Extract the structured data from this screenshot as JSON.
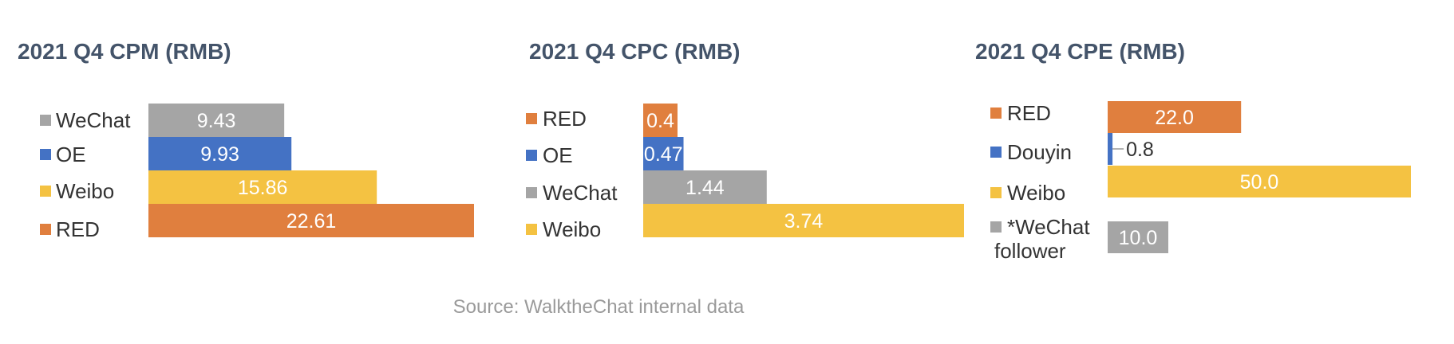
{
  "colors": {
    "grey": "#A5A5A5",
    "blue": "#4472C4",
    "yellow": "#F4C242",
    "orange": "#E07F3E",
    "title": "#44546A",
    "label": "#333333"
  },
  "source": "Source: WalktheChat internal data",
  "chart_data": [
    {
      "type": "bar",
      "orientation": "horizontal",
      "title": "2021 Q4 CPM (RMB)",
      "categories": [
        "WeChat",
        "OE",
        "Weibo",
        "RED"
      ],
      "values": [
        9.43,
        9.93,
        15.86,
        22.61
      ],
      "labels": [
        "9.43",
        "9.93",
        "15.86",
        "22.61"
      ],
      "colors": [
        "#A5A5A5",
        "#4472C4",
        "#F4C242",
        "#E07F3E"
      ],
      "xlim": [
        0,
        22.61
      ],
      "grid": false,
      "legend": "left"
    },
    {
      "type": "bar",
      "orientation": "horizontal",
      "title": "2021 Q4 CPC (RMB)",
      "categories": [
        "RED",
        "OE",
        "WeChat",
        "Weibo"
      ],
      "values": [
        0.4,
        0.47,
        1.44,
        3.74
      ],
      "labels": [
        "0.4",
        "0.47",
        "1.44",
        "3.74"
      ],
      "colors": [
        "#E07F3E",
        "#4472C4",
        "#A5A5A5",
        "#F4C242"
      ],
      "xlim": [
        0,
        3.74
      ],
      "grid": false,
      "legend": "left"
    },
    {
      "type": "bar",
      "orientation": "horizontal",
      "title": "2021 Q4 CPE (RMB)",
      "categories": [
        "RED",
        "Douyin",
        "Weibo",
        "*WeChat follower"
      ],
      "values": [
        22.0,
        0.8,
        50.0,
        10.0
      ],
      "labels": [
        "22.0",
        "0.8",
        "50.0",
        "10.0"
      ],
      "colors": [
        "#E07F3E",
        "#4472C4",
        "#F4C242",
        "#A5A5A5"
      ],
      "xlim": [
        0,
        50.0
      ],
      "grid": false,
      "legend": "left"
    }
  ]
}
